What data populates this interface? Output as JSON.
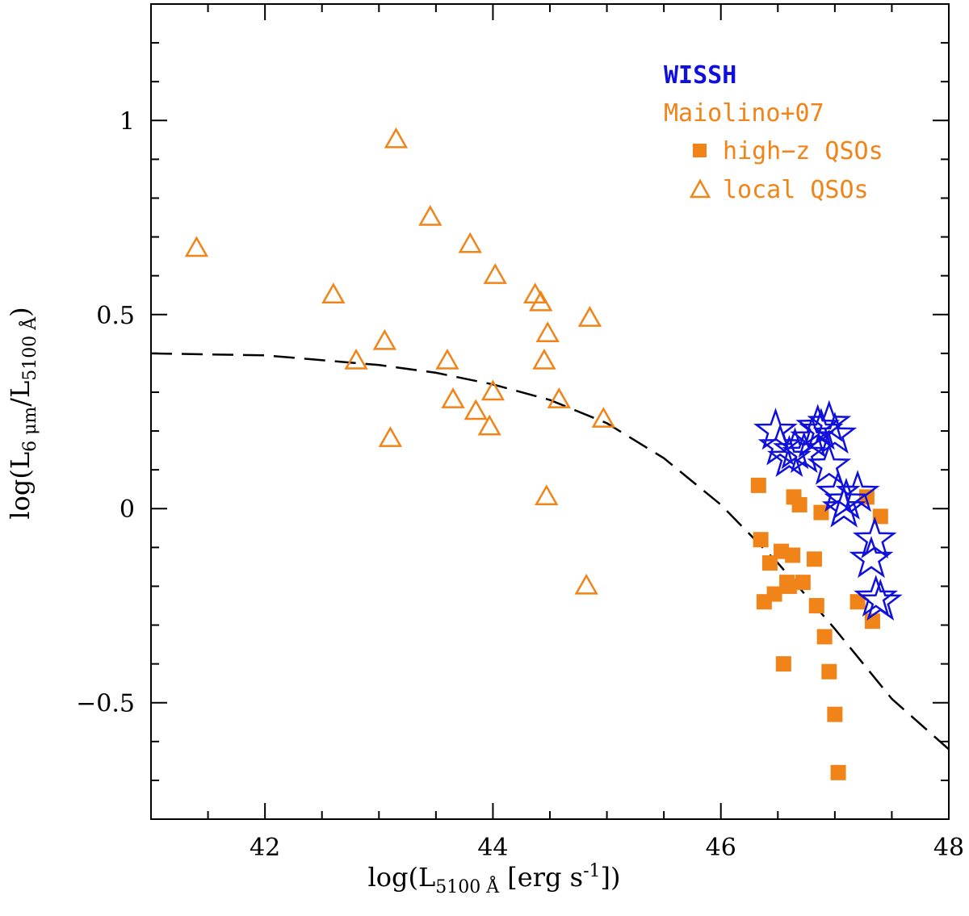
{
  "chart_data": {
    "type": "scatter",
    "xlabel": "log(L5100 Å [erg s-1])",
    "ylabel": "log(L6 μm/L5100 Å)",
    "xlim": [
      41.0,
      48.0
    ],
    "ylim": [
      -0.8,
      1.3
    ],
    "x_ticks": [
      42,
      44,
      46,
      48
    ],
    "x_tick_labels": [
      "42",
      "44",
      "46",
      "48"
    ],
    "y_ticks": [
      -0.5,
      0,
      0.5,
      1
    ],
    "y_tick_labels": [
      "−0.5",
      "0",
      "0.5",
      "1"
    ],
    "legend": {
      "position": "top-right",
      "entries": [
        {
          "label": "WISSH",
          "color": "#1010dd"
        },
        {
          "label": "Maiolino+07",
          "color": "#f08418"
        },
        {
          "label": "high−z QSOs",
          "marker": "filled-square",
          "color": "#f08418"
        },
        {
          "label": "local QSOs",
          "marker": "open-triangle",
          "color": "#f08418"
        }
      ]
    },
    "series": [
      {
        "name": "local QSOs",
        "marker": "open-triangle",
        "color": "#f08418",
        "points": [
          [
            41.4,
            0.67
          ],
          [
            42.6,
            0.55
          ],
          [
            42.8,
            0.38
          ],
          [
            43.05,
            0.43
          ],
          [
            43.1,
            0.18
          ],
          [
            43.15,
            0.95
          ],
          [
            43.45,
            0.75
          ],
          [
            43.6,
            0.38
          ],
          [
            43.65,
            0.28
          ],
          [
            43.8,
            0.68
          ],
          [
            43.85,
            0.25
          ],
          [
            43.97,
            0.21
          ],
          [
            44.0,
            0.3
          ],
          [
            44.02,
            0.6
          ],
          [
            44.37,
            0.55
          ],
          [
            44.42,
            0.53
          ],
          [
            44.45,
            0.38
          ],
          [
            44.48,
            0.45
          ],
          [
            44.47,
            0.03
          ],
          [
            44.58,
            0.28
          ],
          [
            44.82,
            -0.2
          ],
          [
            44.85,
            0.49
          ],
          [
            44.97,
            0.23
          ]
        ]
      },
      {
        "name": "high−z QSOs",
        "marker": "filled-square",
        "color": "#f08418",
        "points": [
          [
            46.33,
            0.06
          ],
          [
            46.35,
            -0.08
          ],
          [
            46.38,
            -0.24
          ],
          [
            46.43,
            -0.14
          ],
          [
            46.47,
            -0.22
          ],
          [
            46.53,
            -0.11
          ],
          [
            46.55,
            -0.4
          ],
          [
            46.58,
            -0.19
          ],
          [
            46.6,
            -0.2
          ],
          [
            46.63,
            -0.12
          ],
          [
            46.64,
            0.03
          ],
          [
            46.69,
            0.01
          ],
          [
            46.72,
            -0.19
          ],
          [
            46.82,
            -0.13
          ],
          [
            46.84,
            -0.25
          ],
          [
            46.88,
            -0.01
          ],
          [
            46.91,
            -0.33
          ],
          [
            46.95,
            -0.42
          ],
          [
            47.0,
            -0.53
          ],
          [
            47.03,
            -0.68
          ],
          [
            47.2,
            -0.24
          ],
          [
            47.28,
            0.03
          ],
          [
            47.33,
            -0.29
          ],
          [
            47.4,
            -0.02
          ]
        ]
      },
      {
        "name": "WISSH",
        "marker": "open-star",
        "color": "#1010dd",
        "points": [
          [
            46.48,
            0.2
          ],
          [
            46.52,
            0.16
          ],
          [
            46.6,
            0.13
          ],
          [
            46.65,
            0.15
          ],
          [
            46.73,
            0.14
          ],
          [
            46.8,
            0.18
          ],
          [
            46.85,
            0.21
          ],
          [
            46.88,
            0.2
          ],
          [
            46.95,
            0.22
          ],
          [
            47.0,
            0.19
          ],
          [
            46.95,
            0.11
          ],
          [
            47.03,
            0.04
          ],
          [
            47.08,
            0.0
          ],
          [
            47.1,
            0.02
          ],
          [
            47.2,
            0.04
          ],
          [
            47.35,
            -0.08
          ],
          [
            47.32,
            -0.13
          ],
          [
            47.36,
            -0.23
          ],
          [
            47.4,
            -0.24
          ]
        ]
      },
      {
        "name": "model curve",
        "type": "line",
        "style": "dashed",
        "color": "#000000",
        "points": [
          [
            41.0,
            0.4
          ],
          [
            42.0,
            0.395
          ],
          [
            43.0,
            0.37
          ],
          [
            43.5,
            0.35
          ],
          [
            44.0,
            0.32
          ],
          [
            44.5,
            0.28
          ],
          [
            45.0,
            0.22
          ],
          [
            45.5,
            0.13
          ],
          [
            46.0,
            0.01
          ],
          [
            46.5,
            -0.14
          ],
          [
            47.0,
            -0.31
          ],
          [
            47.5,
            -0.49
          ],
          [
            48.0,
            -0.62
          ]
        ]
      }
    ]
  }
}
